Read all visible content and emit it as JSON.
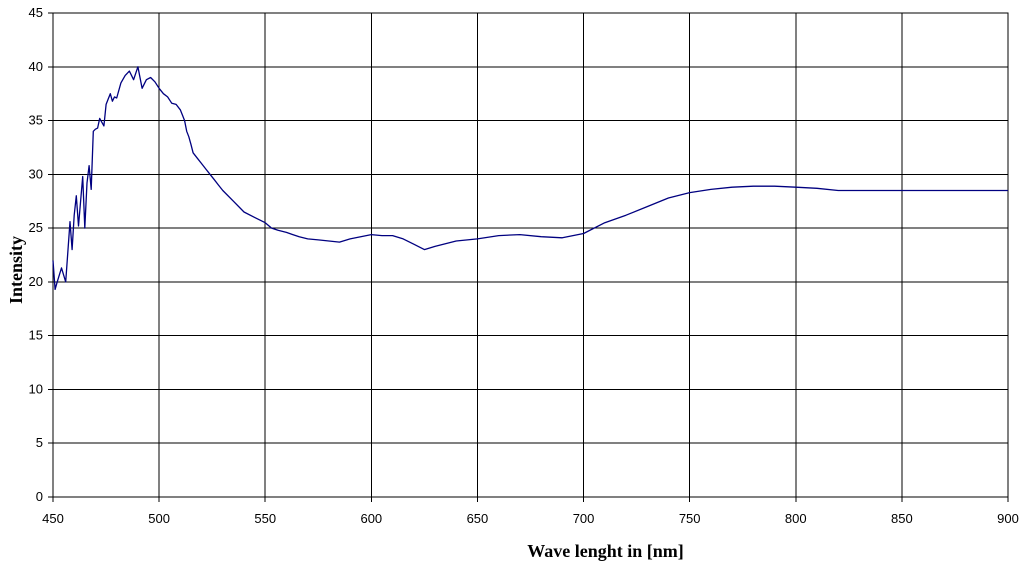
{
  "chart_data": {
    "type": "line",
    "title": "",
    "xlabel": "Wave lenght in [nm]",
    "ylabel": "Intensity",
    "xlim": [
      450,
      900
    ],
    "ylim": [
      0,
      45
    ],
    "x_ticks": [
      450,
      500,
      550,
      600,
      650,
      700,
      750,
      800,
      850,
      900
    ],
    "y_ticks": [
      0,
      5,
      10,
      15,
      20,
      25,
      30,
      35,
      40,
      45
    ],
    "grid": true,
    "legend": "none",
    "series": [
      {
        "color": "#000080",
        "x": [
          450,
          451,
          452,
          454,
          456,
          458,
          459,
          460,
          461,
          462,
          464,
          465,
          466,
          467,
          468,
          469,
          470,
          471,
          472,
          474,
          475,
          476,
          477,
          478,
          479,
          480,
          482,
          484,
          486,
          488,
          490,
          492,
          494,
          496,
          498,
          500,
          502,
          504,
          506,
          508,
          510,
          511,
          512,
          513,
          514,
          515,
          516,
          518,
          520,
          522,
          524,
          526,
          528,
          530,
          535,
          540,
          545,
          550,
          553,
          556,
          560,
          563,
          566,
          570,
          575,
          580,
          585,
          590,
          595,
          600,
          605,
          610,
          615,
          620,
          625,
          630,
          640,
          650,
          660,
          670,
          680,
          690,
          700,
          710,
          720,
          730,
          740,
          750,
          760,
          770,
          780,
          790,
          800,
          810,
          820,
          830,
          840,
          850,
          860,
          870,
          880,
          890,
          900
        ],
        "y": [
          22.0,
          19.3,
          20.0,
          21.3,
          20.0,
          25.6,
          23.0,
          26.2,
          28.0,
          25.2,
          29.8,
          25.0,
          29.2,
          30.8,
          28.6,
          34.0,
          34.2,
          34.3,
          35.2,
          34.5,
          36.5,
          37.0,
          37.5,
          36.8,
          37.2,
          37.1,
          38.5,
          39.2,
          39.6,
          38.8,
          40.0,
          38.0,
          38.8,
          39.0,
          38.6,
          38.0,
          37.5,
          37.2,
          36.6,
          36.5,
          36.0,
          35.5,
          35.0,
          34.0,
          33.5,
          32.8,
          32.0,
          31.5,
          31.0,
          30.5,
          30.0,
          29.5,
          29.0,
          28.5,
          27.5,
          26.5,
          26.0,
          25.5,
          25.0,
          24.8,
          24.6,
          24.4,
          24.2,
          24.0,
          23.9,
          23.8,
          23.7,
          24.0,
          24.2,
          24.4,
          24.3,
          24.3,
          24.0,
          23.5,
          23.0,
          23.3,
          23.8,
          24.0,
          24.3,
          24.4,
          24.2,
          24.1,
          24.5,
          25.5,
          26.2,
          27.0,
          27.8,
          28.3,
          28.6,
          28.8,
          28.9,
          28.9,
          28.8,
          28.7,
          28.5,
          28.5,
          28.5,
          28.5,
          28.5,
          28.5,
          28.5,
          28.5,
          28.5
        ]
      }
    ]
  }
}
